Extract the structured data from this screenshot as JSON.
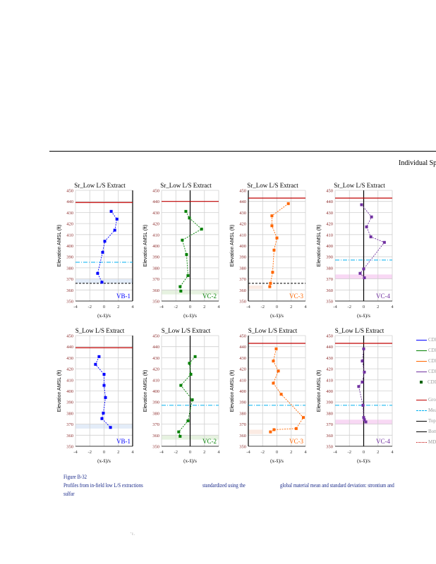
{
  "header": {
    "title": "Individual Sp"
  },
  "caption": {
    "figure": "Figure B-32",
    "line1a": "Profiles from in-field low L/S extractions",
    "line1b": "standardized using the",
    "line1c": "global material mean and standard deviation: strontium and",
    "line2": "sulfar"
  },
  "page_marks": "'  i  .",
  "legend": [
    {
      "label": "CDI",
      "color": "#0000ff",
      "kind": "marker-line"
    },
    {
      "label": "CDI",
      "color": "#008000",
      "kind": "marker-line"
    },
    {
      "label": "CDI",
      "color": "#ff6600",
      "kind": "marker-line"
    },
    {
      "label": "CDI",
      "color": "#7030a0",
      "kind": "marker-line"
    },
    {
      "label": "CDI",
      "color": "#006400",
      "kind": "marker"
    },
    {
      "label": "Gro",
      "color": "#c00000",
      "kind": "solid"
    },
    {
      "label": "Mea",
      "color": "#00b0f0",
      "kind": "dash"
    },
    {
      "label": "Top",
      "color": "#000000",
      "kind": "solid"
    },
    {
      "label": "Bott",
      "color": "#000000",
      "kind": "solid"
    },
    {
      "label": "MDI",
      "color": "#c00000",
      "kind": "dot"
    }
  ],
  "chart_data": [
    {
      "type": "line",
      "title": "Sr_Low L/S Extract",
      "site": "VB-1",
      "color": "#0000ff",
      "band_color": "#e3ecf8",
      "xlabel": "(x-x̄)/s",
      "ylabel": "Elevation AMSL (ft)",
      "xlim": [
        -4,
        4
      ],
      "ylim": [
        350,
        450
      ],
      "xticks": [
        -4,
        -2,
        0,
        2,
        4
      ],
      "yticks": [
        350,
        360,
        370,
        380,
        390,
        400,
        410,
        420,
        430,
        440,
        450
      ],
      "ref_x": 4,
      "points": [
        [
          1,
          431
        ],
        [
          1.8,
          424
        ],
        [
          1.5,
          414
        ],
        [
          0.1,
          404
        ],
        [
          -0.2,
          394
        ],
        [
          -0.9,
          375
        ],
        [
          -0.3,
          367
        ]
      ],
      "ground": 439,
      "mean_line": 385,
      "bottom_line": 366,
      "band": [
        366,
        370
      ],
      "band_x": [
        -4,
        4
      ]
    },
    {
      "type": "line",
      "title": "Sr_Low L/S Extract",
      "site": "VC-2",
      "color": "#008000",
      "band_color": "#e6f2e0",
      "xlabel": "(x-x̄)/s",
      "ylabel": "Elevation AMSL (ft)",
      "xlim": [
        -4,
        4
      ],
      "ylim": [
        350,
        450
      ],
      "xticks": [
        -4,
        -2,
        0,
        2,
        4
      ],
      "yticks": [
        350,
        360,
        370,
        380,
        390,
        400,
        410,
        420,
        430,
        440,
        450
      ],
      "ref_x": 0,
      "points": [
        [
          -0.6,
          431
        ],
        [
          -0.1,
          425
        ],
        [
          1.6,
          415
        ],
        [
          -1.1,
          405
        ],
        [
          -0.5,
          392
        ],
        [
          -0.3,
          373
        ],
        [
          -1.4,
          363
        ],
        [
          -1.3,
          359
        ]
      ],
      "ground": 440,
      "mean_line": null,
      "bottom_line": null,
      "band": [
        356,
        360
      ],
      "band_x": [
        -4,
        4
      ]
    },
    {
      "type": "line",
      "title": "Sr_Low L/S Extract",
      "site": "VC-3",
      "color": "#ff6600",
      "band_color": "#fbebe3",
      "xlabel": "(x-x̄)/s",
      "ylabel": "Elevation AMSL (ft)",
      "xlim": [
        -4,
        4
      ],
      "ylim": [
        350,
        450
      ],
      "xticks": [
        -4,
        -2,
        0,
        2,
        4
      ],
      "yticks": [
        350,
        360,
        370,
        380,
        390,
        400,
        410,
        420,
        430,
        440,
        450
      ],
      "ref_x": -4,
      "points": [
        [
          1.6,
          438
        ],
        [
          -0.7,
          427
        ],
        [
          -0.7,
          418
        ],
        [
          0,
          407
        ],
        [
          -0.4,
          396
        ],
        [
          -0.6,
          376
        ],
        [
          -0.9,
          366
        ],
        [
          -1,
          363
        ]
      ],
      "ground": 443,
      "mean_line": null,
      "bottom_line": 366,
      "band": [
        361,
        364
      ],
      "band_x": [
        -4,
        -2
      ]
    },
    {
      "type": "line",
      "title": "Sr_Low L/S Extract",
      "site": "VC-4",
      "color": "#7030a0",
      "band_color": "#f8d8f4",
      "xlabel": "(x-x̄)/s",
      "ylabel": "Elevation AMSL (ft)",
      "xlim": [
        -4,
        4
      ],
      "ylim": [
        350,
        450
      ],
      "xticks": [
        -4,
        -2,
        0,
        2,
        4
      ],
      "yticks": [
        350,
        360,
        370,
        380,
        390,
        400,
        410,
        420,
        430,
        440,
        450
      ],
      "ref_x": 0,
      "points": [
        [
          -0.3,
          437
        ],
        [
          1.1,
          426
        ],
        [
          0.4,
          417
        ],
        [
          1,
          408
        ],
        [
          2.9,
          403
        ],
        [
          0,
          379
        ],
        [
          -0.5,
          375
        ],
        [
          0.1,
          371
        ]
      ],
      "ground": 443,
      "mean_line": 387,
      "bottom_line": null,
      "band": [
        370,
        374
      ],
      "band_x": [
        -4,
        4
      ]
    },
    {
      "type": "line",
      "title": "S_Low L/S Extract",
      "site": "VB-1",
      "color": "#0000ff",
      "band_color": "#e3ecf8",
      "xlabel": "(x-x̄)/s",
      "ylabel": "Elevation AMSL (ft)",
      "xlim": [
        -4,
        4
      ],
      "ylim": [
        350,
        450
      ],
      "xticks": [
        -4,
        -2,
        0,
        2,
        4
      ],
      "yticks": [
        350,
        360,
        370,
        380,
        390,
        400,
        410,
        420,
        430,
        440,
        450
      ],
      "ref_x": 4,
      "points": [
        [
          -0.7,
          431
        ],
        [
          -1.2,
          424
        ],
        [
          0,
          415
        ],
        [
          0,
          405
        ],
        [
          0.2,
          394
        ],
        [
          -0.1,
          380
        ],
        [
          -0.3,
          375
        ],
        [
          0.9,
          367
        ]
      ],
      "ground": 439,
      "mean_line": null,
      "bottom_line": null,
      "band": [
        366,
        370
      ],
      "band_x": [
        -4,
        4
      ]
    },
    {
      "type": "line",
      "title": "S_Low L/S Extract",
      "site": "VC-2",
      "color": "#008000",
      "band_color": "#e6f2e0",
      "xlabel": "(x-x̄)/s",
      "ylabel": "Elevation AMSL (ft)",
      "xlim": [
        -4,
        4
      ],
      "ylim": [
        350,
        450
      ],
      "xticks": [
        -4,
        -2,
        0,
        2,
        4
      ],
      "yticks": [
        350,
        360,
        370,
        380,
        390,
        400,
        410,
        420,
        430,
        440,
        450
      ],
      "ref_x": 0,
      "points": [
        [
          0.7,
          431
        ],
        [
          -0.1,
          425
        ],
        [
          0.1,
          415
        ],
        [
          -1.3,
          405
        ],
        [
          0.3,
          392
        ],
        [
          -0.3,
          373
        ],
        [
          -1.6,
          363
        ],
        [
          -1.4,
          359
        ]
      ],
      "ground": null,
      "mean_line": 387,
      "bottom_line": null,
      "band": [
        356,
        360
      ],
      "band_x": [
        -4,
        4
      ]
    },
    {
      "type": "line",
      "title": "S_Low L/S Extract",
      "site": "VC-3",
      "color": "#ff6600",
      "band_color": "#fbebe3",
      "xlabel": "(x-x̄)/s",
      "ylabel": "Elevation AMSL (ft)",
      "xlim": [
        -4,
        4
      ],
      "ylim": [
        350,
        450
      ],
      "xticks": [
        -4,
        -2,
        0,
        2,
        4
      ],
      "yticks": [
        350,
        360,
        370,
        380,
        390,
        400,
        410,
        420,
        430,
        440,
        450
      ],
      "ref_x": -4,
      "points": [
        [
          -0.1,
          438
        ],
        [
          -0.5,
          427
        ],
        [
          0.2,
          418
        ],
        [
          -0.5,
          407
        ],
        [
          0.6,
          397
        ],
        [
          3.7,
          376
        ],
        [
          2.7,
          366
        ],
        [
          -0.4,
          365
        ],
        [
          -0.9,
          363
        ]
      ],
      "ground": 443,
      "mean_line": 387,
      "bottom_line": null,
      "band": [
        361,
        365
      ],
      "band_x": [
        -4,
        -2
      ]
    },
    {
      "type": "line",
      "title": "S_Low L/S Extract",
      "site": "VC-4",
      "color": "#7030a0",
      "band_color": "#f8d8f4",
      "xlabel": "(x-x̄)/s",
      "ylabel": "Elevation AMSL (ft)",
      "xlim": [
        -4,
        4
      ],
      "ylim": [
        350,
        450
      ],
      "xticks": [
        -4,
        -2,
        0,
        2,
        4
      ],
      "yticks": [
        350,
        360,
        370,
        380,
        390,
        400,
        410,
        420,
        430,
        440,
        450
      ],
      "ref_x": 0,
      "points": [
        [
          0,
          438
        ],
        [
          -0.2,
          427
        ],
        [
          0.1,
          417
        ],
        [
          -0.2,
          408
        ],
        [
          -0.7,
          404
        ],
        [
          -0.1,
          387
        ],
        [
          0,
          376
        ],
        [
          0.1,
          374
        ],
        [
          0.3,
          372
        ]
      ],
      "ground": 443,
      "mean_line": 387,
      "bottom_line": null,
      "band": [
        370,
        374
      ],
      "band_x": [
        -4,
        4
      ]
    }
  ]
}
